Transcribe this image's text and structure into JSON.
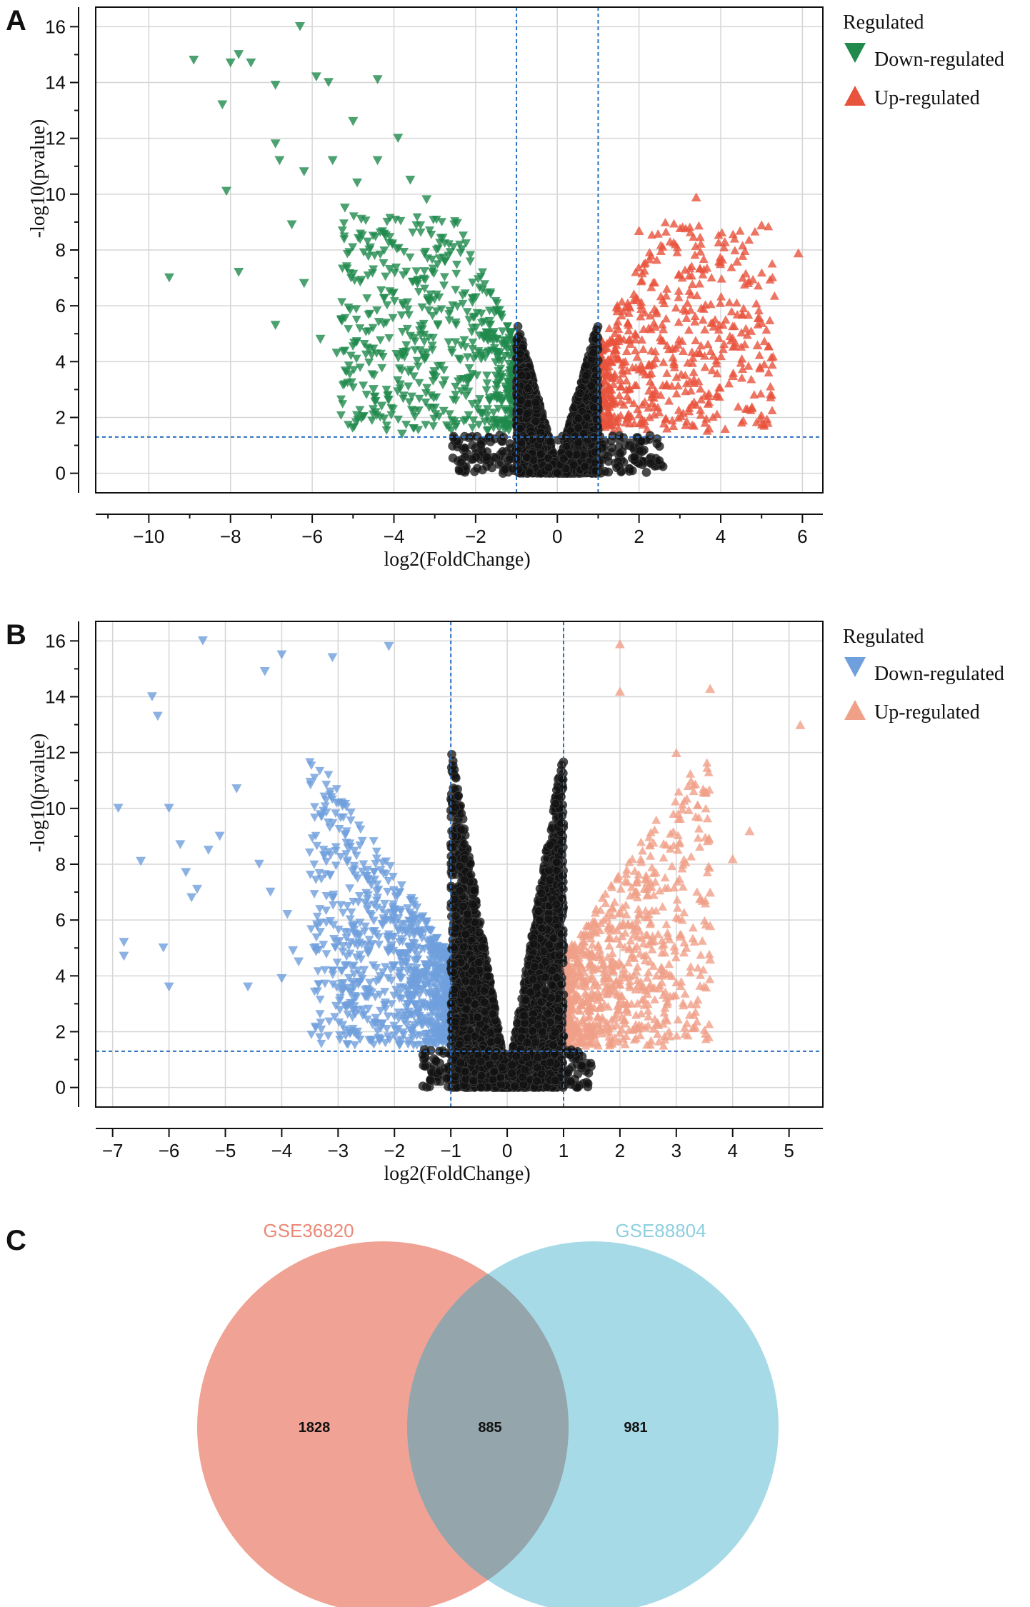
{
  "panels": {
    "A": {
      "letter": "A",
      "chart_data": {
        "type": "scatter",
        "title": "",
        "xlabel": "log2(FoldChange)",
        "ylabel": "-log10(pvalue)",
        "xlim": [
          -11.3,
          6.5
        ],
        "ylim": [
          -0.7,
          16.7
        ],
        "xticks": [
          -10,
          -8,
          -6,
          -4,
          -2,
          0,
          2,
          4,
          6
        ],
        "yticks": [
          0,
          2,
          4,
          6,
          8,
          10,
          12,
          14,
          16
        ],
        "grid": true,
        "thresholds": {
          "fc": [
            -1,
            1
          ],
          "p": 1.3
        },
        "legend": {
          "title": "Regulated",
          "position": "right",
          "items": [
            {
              "label": "Down-regulated",
              "marker": "triangle-down",
              "color": "#1f8a4c"
            },
            {
              "label": "Up-regulated",
              "marker": "triangle-up",
              "color": "#e8533c"
            }
          ]
        },
        "series": [
          {
            "name": "Down-regulated",
            "color": "#1f8a4c",
            "marker": "triangle-down",
            "points": [
              [
                -9.5,
                7.0
              ],
              [
                -8.9,
                14.8
              ],
              [
                -8.2,
                13.2
              ],
              [
                -8.1,
                10.1
              ],
              [
                -8.0,
                14.7
              ],
              [
                -7.8,
                15.0
              ],
              [
                -7.5,
                14.7
              ],
              [
                -7.8,
                7.2
              ],
              [
                -6.9,
                13.9
              ],
              [
                -6.9,
                11.8
              ],
              [
                -6.8,
                11.2
              ],
              [
                -6.9,
                5.3
              ],
              [
                -6.5,
                8.9
              ],
              [
                -6.3,
                16.0
              ],
              [
                -6.2,
                10.8
              ],
              [
                -6.2,
                6.8
              ],
              [
                -5.9,
                14.2
              ],
              [
                -5.6,
                14.0
              ],
              [
                -5.5,
                11.2
              ],
              [
                -5.2,
                9.5
              ],
              [
                -5.0,
                12.6
              ],
              [
                -4.9,
                10.4
              ],
              [
                -4.8,
                9.1
              ],
              [
                -4.6,
                8.0
              ],
              [
                -4.4,
                14.1
              ],
              [
                -4.4,
                11.2
              ],
              [
                -4.2,
                8.5
              ],
              [
                -4.1,
                7.3
              ],
              [
                -3.9,
                12.0
              ],
              [
                -3.6,
                10.5
              ],
              [
                -3.2,
                9.8
              ],
              [
                -5.8,
                4.8
              ],
              [
                -5.4,
                4.3
              ],
              [
                -4.5,
                3.0
              ],
              [
                -4.3,
                2.4
              ],
              [
                -3.8,
                1.4
              ],
              [
                -3.5,
                2.2
              ]
            ]
          }
        ],
        "clouds": [
          {
            "series": "Down-regulated",
            "xmin": -5.3,
            "xmax": -1.0,
            "ymin": 1.5,
            "ymax": 9.2,
            "count": 620
          },
          {
            "series": "Up-regulated",
            "xmin": 1.0,
            "xmax": 5.3,
            "ymin": 1.5,
            "ymax": 9.0,
            "count": 560
          }
        ],
        "extra_up_points": [
          [
            3.4,
            9.9
          ],
          [
            5.0,
            8.9
          ],
          [
            5.9,
            7.9
          ],
          [
            4.1,
            8.3
          ],
          [
            4.4,
            7.6
          ],
          [
            2.0,
            8.7
          ],
          [
            5.0,
            5.4
          ],
          [
            4.9,
            4.6
          ],
          [
            4.3,
            3.5
          ]
        ]
      }
    },
    "B": {
      "letter": "B",
      "chart_data": {
        "type": "scatter",
        "title": "",
        "xlabel": "log2(FoldChange)",
        "ylabel": "-log10(pvalue)",
        "xlim": [
          -7.3,
          5.6
        ],
        "ylim": [
          -0.7,
          16.7
        ],
        "xticks": [
          -7,
          -6,
          -5,
          -4,
          -3,
          -2,
          -1,
          0,
          1,
          2,
          3,
          4,
          5
        ],
        "yticks": [
          0,
          2,
          4,
          6,
          8,
          10,
          12,
          14,
          16
        ],
        "grid": true,
        "thresholds": {
          "fc": [
            -1,
            1
          ],
          "p": 1.3
        },
        "legend": {
          "title": "Regulated",
          "position": "right",
          "items": [
            {
              "label": "Down-regulated",
              "marker": "triangle-down",
              "color": "#6f9fdc"
            },
            {
              "label": "Up-regulated",
              "marker": "triangle-up",
              "color": "#f0a088"
            }
          ]
        },
        "series": [
          {
            "name": "Down-regulated",
            "color": "#6f9fdc",
            "marker": "triangle-down",
            "points": [
              [
                -6.9,
                10.0
              ],
              [
                -6.8,
                5.2
              ],
              [
                -6.8,
                4.7
              ],
              [
                -6.5,
                8.1
              ],
              [
                -6.3,
                14.0
              ],
              [
                -6.2,
                13.3
              ],
              [
                -6.1,
                5.0
              ],
              [
                -6.0,
                10.0
              ],
              [
                -6.0,
                3.6
              ],
              [
                -5.8,
                8.7
              ],
              [
                -5.7,
                7.7
              ],
              [
                -5.6,
                6.8
              ],
              [
                -5.5,
                7.1
              ],
              [
                -5.4,
                16.0
              ],
              [
                -5.3,
                8.5
              ],
              [
                -5.1,
                9.0
              ],
              [
                -4.8,
                10.7
              ],
              [
                -4.6,
                3.6
              ],
              [
                -4.4,
                8.0
              ],
              [
                -4.3,
                14.9
              ],
              [
                -4.0,
                15.5
              ],
              [
                -4.0,
                3.9
              ],
              [
                -3.8,
                4.9
              ],
              [
                -3.7,
                4.5
              ],
              [
                -3.1,
                15.4
              ],
              [
                -2.1,
                15.8
              ],
              [
                -4.2,
                7.0
              ],
              [
                -3.9,
                6.2
              ]
            ]
          }
        ],
        "clouds": [
          {
            "series": "Down-regulated",
            "xmin": -3.5,
            "xmax": -1.0,
            "ymin": 1.5,
            "ymax": 13.5,
            "count": 900
          },
          {
            "series": "Up-regulated",
            "xmin": 1.0,
            "xmax": 3.6,
            "ymin": 1.5,
            "ymax": 13.0,
            "count": 800
          }
        ],
        "extra_up_points": [
          [
            2.0,
            15.9
          ],
          [
            2.0,
            14.2
          ],
          [
            3.6,
            14.3
          ],
          [
            5.2,
            13.0
          ],
          [
            4.3,
            9.2
          ],
          [
            4.0,
            8.2
          ],
          [
            3.6,
            7.0
          ],
          [
            3.6,
            5.8
          ],
          [
            3.6,
            4.6
          ],
          [
            3.0,
            12.0
          ]
        ]
      }
    },
    "C": {
      "letter": "C",
      "chart_data": {
        "type": "venn",
        "sets": [
          {
            "label": "GSE36820",
            "color": "#ec8876",
            "label_color": "#ec8876"
          },
          {
            "label": "GSE88804",
            "color": "#8ed0e0",
            "label_color": "#8ed0e0"
          }
        ],
        "regions": {
          "left_only": 1828,
          "intersection": 885,
          "right_only": 981
        }
      }
    }
  }
}
